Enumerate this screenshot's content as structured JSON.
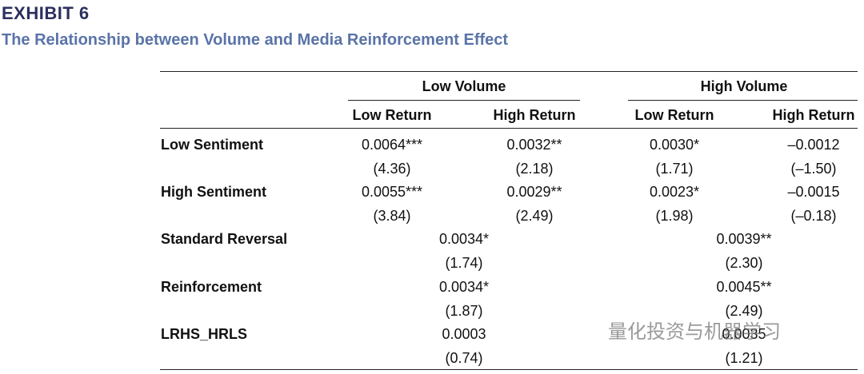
{
  "header": {
    "exhibit": "EXHIBIT 6",
    "title": "The Relationship between Volume and Media Reinforcement Effect"
  },
  "table": {
    "groups": [
      "Low Volume",
      "High Volume"
    ],
    "subheaders": [
      "Low Return",
      "High Return",
      "Low Return",
      "High Return"
    ],
    "rows": [
      {
        "label": "Low Sentiment",
        "coef": [
          "0.0064***",
          "0.0032**",
          "0.0030*",
          "–0.0012"
        ],
        "t": [
          "(4.36)",
          "(2.18)",
          "(1.71)",
          "(–1.50)"
        ]
      },
      {
        "label": "High Sentiment",
        "coef": [
          "0.0055***",
          "0.0029**",
          "0.0023*",
          "–0.0015"
        ],
        "t": [
          "(3.84)",
          "(2.49)",
          "(1.98)",
          "(–0.18)"
        ]
      },
      {
        "label": "Standard Reversal",
        "coef": [
          "0.0034*",
          "0.0039**"
        ],
        "t": [
          "(1.74)",
          "(2.30)"
        ]
      },
      {
        "label": "Reinforcement",
        "coef": [
          "0.0034*",
          "0.0045**"
        ],
        "t": [
          "(1.87)",
          "(2.49)"
        ]
      },
      {
        "label": "LRHS_HRLS",
        "coef": [
          "0.0003",
          "0.0035"
        ],
        "t": [
          "(0.74)",
          "(1.21)"
        ]
      }
    ]
  },
  "watermark": "量化投资与机器学习"
}
